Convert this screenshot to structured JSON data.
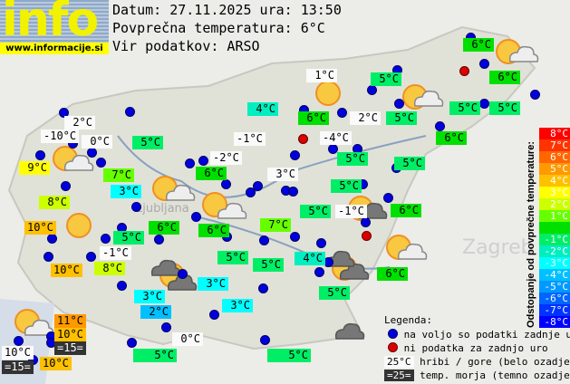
{
  "logo": {
    "text": "info",
    "url": "www.informacije.si"
  },
  "header": {
    "date": "Datum: 27.11.2025 ura: 13:50",
    "avg": "Povprečna temperatura: 6°C",
    "source": "Vir podatkov: ARSO"
  },
  "stations": [
    "2°C",
    "-10°C",
    "0°C",
    "9°C",
    "5°C",
    "7°C",
    "3°C",
    "8°C",
    "10°C",
    "5°C",
    "-1°C",
    "8°C",
    "10°C",
    "4°C",
    "-1°C",
    "-2°C",
    "6°C",
    "6°C",
    "6°C",
    "3°C",
    "7°C",
    "5°C",
    "5°C",
    "6°C",
    "1°C",
    "5°C",
    "6°C",
    "6°C",
    "2°C",
    "5°C",
    "5°C",
    "5°C",
    "-4°C",
    "6°C",
    "5°C",
    "5°C",
    "5°C",
    "5°C",
    "-1°C",
    "6°C",
    "4°C",
    "6°C",
    "5°C",
    "3°C",
    "3°C",
    "2°C",
    "3°C",
    "11°C",
    "10°C",
    "=15=",
    "10°C",
    "=15=",
    "10°C",
    "0°C",
    "5°C",
    "5°C"
  ],
  "scale": {
    "title": "Odstopanje od povprečne temperature:",
    "items": [
      {
        "label": "8°C",
        "color": "#ff0000"
      },
      {
        "label": "7°C",
        "color": "#ff3300"
      },
      {
        "label": "6°C",
        "color": "#ff6600"
      },
      {
        "label": "5°C",
        "color": "#ff9900"
      },
      {
        "label": "4°C",
        "color": "#ffc000"
      },
      {
        "label": "3°C",
        "color": "#ffff00"
      },
      {
        "label": "2°C",
        "color": "#ccff00"
      },
      {
        "label": "1°C",
        "color": "#66ff00"
      },
      {
        "label": "",
        "color": "#00e000"
      },
      {
        "label": "-1°C",
        "color": "#00ee66"
      },
      {
        "label": "-2°C",
        "color": "#00eec0"
      },
      {
        "label": "-3°C",
        "color": "#00ffff"
      },
      {
        "label": "-4°C",
        "color": "#00c0ff"
      },
      {
        "label": "-5°C",
        "color": "#0099ff"
      },
      {
        "label": "-6°C",
        "color": "#0066ff"
      },
      {
        "label": "-7°C",
        "color": "#0033ff"
      },
      {
        "label": "-8°C",
        "color": "#0000ff"
      }
    ]
  },
  "legend": {
    "title": "Legenda:",
    "available": "na voljo so podatki zadnje ure",
    "missing": "ni podatka za zadnjo uro",
    "mountain_sample": "25°C",
    "mountain": "hribi / gore (belo ozadje)",
    "sea_sample": "=25=",
    "sea": "temp. morja (temno ozadje)"
  },
  "map_labels": {
    "city": "Zagreb",
    "ljubljana": "Ljubljana"
  }
}
